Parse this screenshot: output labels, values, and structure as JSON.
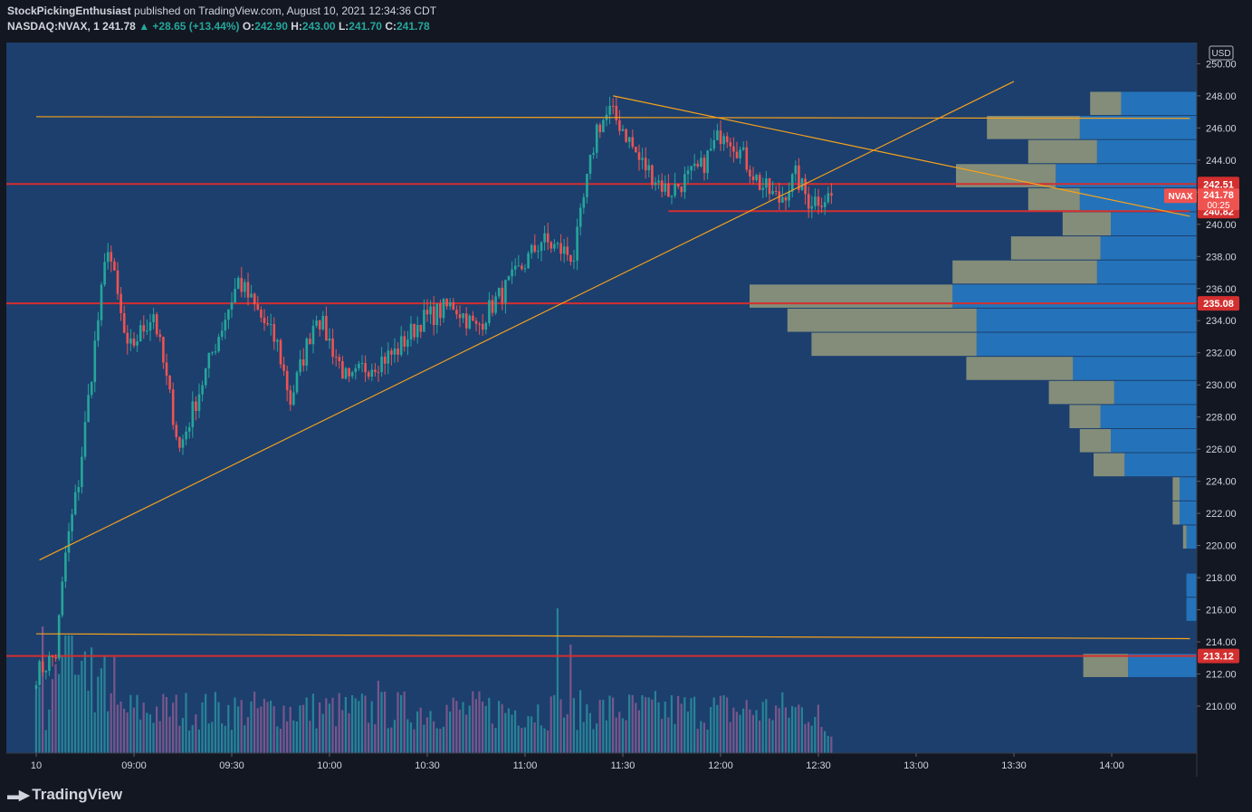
{
  "header": {
    "publisher": "StockPickingEnthusiast",
    "published_text": "published on TradingView.com, August 10, 2021 12:34:36 CDT",
    "symbol": "NASDAQ:NVAX, 1",
    "last": "241.78",
    "change": "+28.65 (+13.44%)",
    "o_label": "O:",
    "o": "242.90",
    "h_label": "H:",
    "h": "243.00",
    "l_label": "L:",
    "l": "241.70",
    "c_label": "C:",
    "c": "241.78"
  },
  "footer": {
    "brand": "TradingView"
  },
  "colors": {
    "background": "#1c3f6e",
    "up_candle": "#26a69a",
    "down_candle": "#ef5350",
    "trendline": "#f7a21b",
    "level": "#d32f2f",
    "vp_up": "#2679c2",
    "vp_down": "#8f967a"
  },
  "chart_data": {
    "type": "candlestick",
    "currency": "USD",
    "y_ticks": [
      "210.00",
      "212.00",
      "214.00",
      "216.00",
      "218.00",
      "220.00",
      "222.00",
      "224.00",
      "226.00",
      "228.00",
      "230.00",
      "232.00",
      "234.00",
      "236.00",
      "238.00",
      "240.00",
      "242.00",
      "244.00",
      "246.00",
      "248.00",
      "250.00"
    ],
    "x_ticks": [
      "10",
      "09:00",
      "09:30",
      "10:00",
      "10:30",
      "11:00",
      "11:30",
      "12:00",
      "12:30",
      "13:00",
      "13:30",
      "14:00"
    ],
    "ylim": [
      208,
      252.5
    ],
    "price_labels": [
      {
        "text": "242.51",
        "value": 242.51,
        "kind": "level"
      },
      {
        "text": "240.82",
        "value": 240.82,
        "kind": "level"
      },
      {
        "text": "235.08",
        "value": 235.08,
        "kind": "level"
      },
      {
        "text": "213.12",
        "value": 213.12,
        "kind": "level"
      }
    ],
    "last_price": {
      "symbol": "NVAX",
      "price": "241.78",
      "countdown": "00:25",
      "value": 241.78
    },
    "candle_anchors": [
      {
        "t": "08:30",
        "v": 212.0
      },
      {
        "t": "08:36",
        "v": 213.2
      },
      {
        "t": "08:39",
        "v": 219.5
      },
      {
        "t": "08:43",
        "v": 224.0
      },
      {
        "t": "08:48",
        "v": 232.5
      },
      {
        "t": "08:52",
        "v": 238.8
      },
      {
        "t": "08:58",
        "v": 232.0
      },
      {
        "t": "09:06",
        "v": 234.5
      },
      {
        "t": "09:14",
        "v": 226.0
      },
      {
        "t": "09:24",
        "v": 232.0
      },
      {
        "t": "09:32",
        "v": 236.5
      },
      {
        "t": "09:44",
        "v": 232.5
      },
      {
        "t": "09:48",
        "v": 229.0
      },
      {
        "t": "09:56",
        "v": 234.5
      },
      {
        "t": "10:06",
        "v": 230.0
      },
      {
        "t": "10:10",
        "v": 231.0
      },
      {
        "t": "10:20",
        "v": 232.0
      },
      {
        "t": "10:28",
        "v": 234.0
      },
      {
        "t": "10:38",
        "v": 235.0
      },
      {
        "t": "10:45",
        "v": 233.5
      },
      {
        "t": "10:50",
        "v": 235.0
      },
      {
        "t": "10:56",
        "v": 236.5
      },
      {
        "t": "11:05",
        "v": 239.0
      },
      {
        "t": "11:15",
        "v": 238.0
      },
      {
        "t": "11:18",
        "v": 241.5
      },
      {
        "t": "11:22",
        "v": 246.0
      },
      {
        "t": "11:26",
        "v": 247.0
      },
      {
        "t": "11:30",
        "v": 246.0
      },
      {
        "t": "11:35",
        "v": 244.0
      },
      {
        "t": "11:44",
        "v": 242.0
      },
      {
        "t": "11:54",
        "v": 243.5
      },
      {
        "t": "12:01",
        "v": 246.0
      },
      {
        "t": "12:06",
        "v": 244.5
      },
      {
        "t": "12:12",
        "v": 242.5
      },
      {
        "t": "12:18",
        "v": 241.5
      },
      {
        "t": "12:23",
        "v": 243.0
      },
      {
        "t": "12:27",
        "v": 241.5
      },
      {
        "t": "12:34",
        "v": 241.78
      }
    ],
    "horizontal_levels": [
      {
        "value": 242.51,
        "color": "red"
      },
      {
        "value": 235.08,
        "color": "red"
      },
      {
        "value": 213.12,
        "color": "red"
      },
      {
        "from_t": "11:44",
        "to_t": "14:24",
        "value": 240.82,
        "color": "red"
      }
    ],
    "trendlines": [
      {
        "t1": "08:30",
        "v1": 246.7,
        "t2": "14:24",
        "v2": 246.6
      },
      {
        "t1": "08:30",
        "v1": 214.5,
        "t2": "14:24",
        "v2": 214.2
      },
      {
        "t1": "08:31",
        "v1": 219.1,
        "t2": "13:30",
        "v2": 248.9
      },
      {
        "t1": "11:27",
        "v1": 248.0,
        "t2": "14:24",
        "v2": 240.5
      }
    ],
    "volume_profile": [
      {
        "price": 247.5,
        "up": 0.22,
        "down": 0.09
      },
      {
        "price": 246.0,
        "up": 0.34,
        "down": 0.27
      },
      {
        "price": 244.5,
        "up": 0.29,
        "down": 0.2
      },
      {
        "price": 243.0,
        "up": 0.41,
        "down": 0.29
      },
      {
        "price": 241.5,
        "up": 0.34,
        "down": 0.15
      },
      {
        "price": 240.0,
        "up": 0.25,
        "down": 0.14
      },
      {
        "price": 238.5,
        "up": 0.28,
        "down": 0.26
      },
      {
        "price": 237.0,
        "up": 0.29,
        "down": 0.42
      },
      {
        "price": 235.5,
        "up": 0.71,
        "down": 0.59
      },
      {
        "price": 234.0,
        "up": 0.64,
        "down": 0.55
      },
      {
        "price": 232.5,
        "up": 0.64,
        "down": 0.48
      },
      {
        "price": 231.0,
        "up": 0.36,
        "down": 0.31
      },
      {
        "price": 229.5,
        "up": 0.24,
        "down": 0.19
      },
      {
        "price": 228.0,
        "up": 0.28,
        "down": 0.09
      },
      {
        "price": 226.5,
        "up": 0.25,
        "down": 0.09
      },
      {
        "price": 225.0,
        "up": 0.21,
        "down": 0.09
      },
      {
        "price": 223.5,
        "up": 0.05,
        "down": 0.02
      },
      {
        "price": 222.0,
        "up": 0.05,
        "down": 0.02
      },
      {
        "price": 220.5,
        "up": 0.03,
        "down": 0.01
      },
      {
        "price": 217.5,
        "up": 0.03,
        "down": 0.0
      },
      {
        "price": 216.0,
        "up": 0.03,
        "down": 0.0
      },
      {
        "price": 212.5,
        "up": 0.2,
        "down": 0.13
      }
    ]
  }
}
